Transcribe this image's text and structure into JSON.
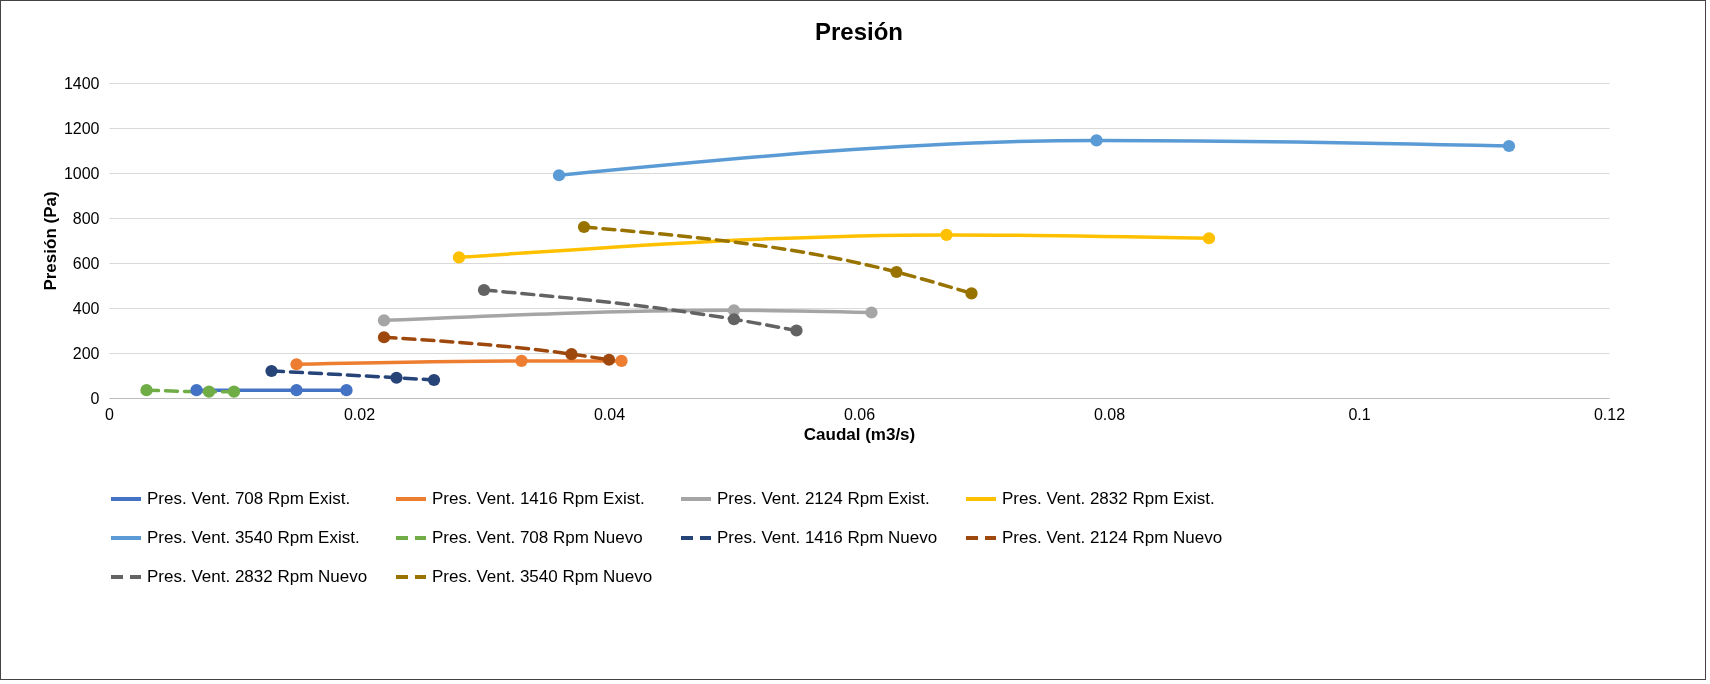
{
  "chart_data": {
    "type": "line",
    "title": "Presión",
    "xlabel": "Caudal (m3/s)",
    "ylabel": "Presión (Pa)",
    "xlim": [
      0,
      0.12
    ],
    "xticks": [
      0,
      0.02,
      0.04,
      0.06,
      0.08,
      0.1,
      0.12
    ],
    "ylim": [
      0,
      1400
    ],
    "yticks": [
      0,
      200,
      400,
      600,
      800,
      1000,
      1200,
      1400
    ],
    "grid": "y",
    "legend": "bottom",
    "marker": "circle",
    "series": [
      {
        "name": "Pres. Vent. 708 Rpm Exist.",
        "color": "#4472c4",
        "line_style": "solid",
        "x": [
          0.007,
          0.015,
          0.019
        ],
        "values": [
          35,
          35,
          35
        ]
      },
      {
        "name": "Pres. Vent. 1416 Rpm Exist.",
        "color": "#ed7d31",
        "line_style": "solid",
        "x": [
          0.015,
          0.033,
          0.041
        ],
        "values": [
          150,
          165,
          165
        ]
      },
      {
        "name": "Pres. Vent. 2124 Rpm Exist.",
        "color": "#a5a5a5",
        "line_style": "solid",
        "x": [
          0.022,
          0.05,
          0.061
        ],
        "values": [
          345,
          390,
          380
        ]
      },
      {
        "name": "Pres. Vent. 2832 Rpm Exist.",
        "color": "#ffc000",
        "line_style": "solid",
        "x": [
          0.028,
          0.067,
          0.088
        ],
        "values": [
          625,
          725,
          710
        ]
      },
      {
        "name": "Pres. Vent. 3540 Rpm Exist.",
        "color": "#5b9bd5",
        "line_style": "solid",
        "x": [
          0.036,
          0.079,
          0.112
        ],
        "values": [
          990,
          1145,
          1120
        ]
      },
      {
        "name": "Pres. Vent. 708 Rpm Nuevo",
        "color": "#70ad47",
        "line_style": "dashed",
        "x": [
          0.003,
          0.008,
          0.01
        ],
        "values": [
          35,
          28,
          28
        ]
      },
      {
        "name": "Pres. Vent. 1416 Rpm Nuevo",
        "color": "#264478",
        "line_style": "dashed",
        "x": [
          0.013,
          0.023,
          0.026
        ],
        "values": [
          120,
          90,
          80
        ]
      },
      {
        "name": "Pres. Vent. 2124 Rpm Nuevo",
        "color": "#9e480e",
        "line_style": "dashed",
        "x": [
          0.022,
          0.037,
          0.04
        ],
        "values": [
          270,
          195,
          170
        ]
      },
      {
        "name": "Pres. Vent. 2832 Rpm Nuevo",
        "color": "#636363",
        "line_style": "dashed",
        "x": [
          0.03,
          0.05,
          0.055
        ],
        "values": [
          480,
          350,
          300
        ]
      },
      {
        "name": "Pres. Vent. 3540 Rpm Nuevo",
        "color": "#997300",
        "line_style": "dashed",
        "x": [
          0.038,
          0.063,
          0.069
        ],
        "values": [
          760,
          560,
          465
        ]
      }
    ]
  }
}
